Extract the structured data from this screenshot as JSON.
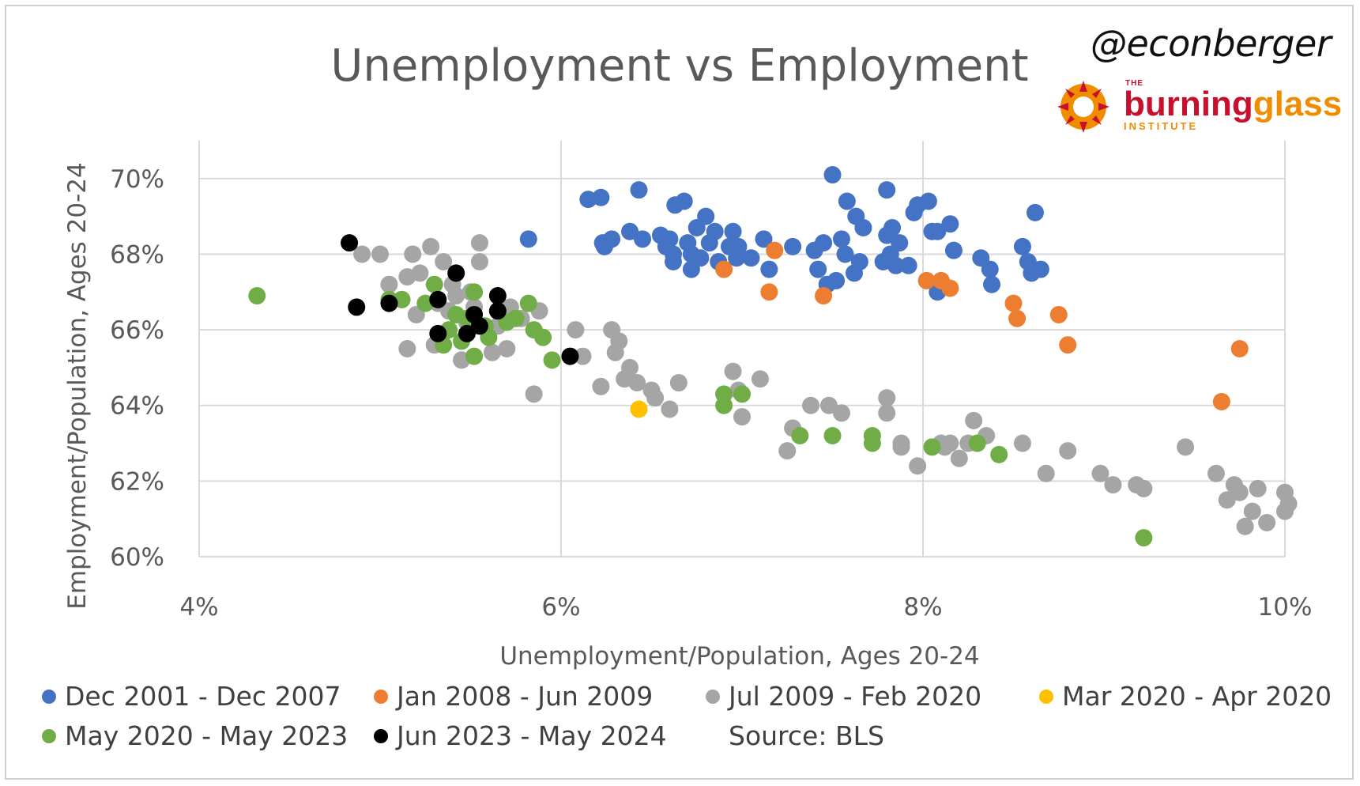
{
  "title": "Unemployment vs Employment",
  "handle": "@econberger",
  "logo": {
    "top": "THE",
    "word1": "burning",
    "word2": "glass",
    "bottom": "INSTITUTE"
  },
  "source": "Source: BLS",
  "chart_data": {
    "type": "scatter",
    "title": "Unemployment vs Employment",
    "xlabel": "Unemployment/Population, Ages 20-24",
    "ylabel": "Employment/Population, Ages 20-24",
    "xlim": [
      4,
      10
    ],
    "ylim": [
      60,
      71
    ],
    "xticks": [
      4,
      6,
      8,
      10
    ],
    "yticks": [
      60,
      62,
      64,
      66,
      68,
      70
    ],
    "x_tick_format": "%",
    "y_tick_format": "%",
    "grid": true,
    "legend_position": "bottom",
    "series": [
      {
        "name": "Dec 2001 - Dec 2007",
        "color": "#4472C4",
        "points": [
          [
            5.82,
            68.4
          ],
          [
            6.15,
            69.45
          ],
          [
            6.22,
            69.5
          ],
          [
            6.23,
            68.3
          ],
          [
            6.24,
            68.2
          ],
          [
            6.28,
            68.4
          ],
          [
            6.38,
            68.6
          ],
          [
            6.43,
            69.7
          ],
          [
            6.45,
            68.4
          ],
          [
            6.55,
            68.5
          ],
          [
            6.58,
            68.2
          ],
          [
            6.6,
            68.4
          ],
          [
            6.62,
            68.0
          ],
          [
            6.62,
            67.8
          ],
          [
            6.63,
            69.3
          ],
          [
            6.68,
            69.4
          ],
          [
            6.7,
            68.3
          ],
          [
            6.72,
            68.0
          ],
          [
            6.72,
            67.6
          ],
          [
            6.75,
            68.7
          ],
          [
            6.77,
            67.9
          ],
          [
            6.8,
            69.0
          ],
          [
            6.82,
            68.3
          ],
          [
            6.85,
            68.6
          ],
          [
            6.87,
            67.8
          ],
          [
            6.93,
            68.2
          ],
          [
            6.95,
            68.6
          ],
          [
            6.97,
            67.9
          ],
          [
            6.98,
            68.2
          ],
          [
            7.05,
            67.9
          ],
          [
            7.12,
            68.4
          ],
          [
            7.15,
            67.6
          ],
          [
            7.28,
            68.2
          ],
          [
            7.4,
            68.1
          ],
          [
            7.42,
            67.6
          ],
          [
            7.45,
            68.3
          ],
          [
            7.47,
            67.2
          ],
          [
            7.5,
            70.1
          ],
          [
            7.52,
            67.3
          ],
          [
            7.55,
            68.4
          ],
          [
            7.57,
            68.0
          ],
          [
            7.58,
            69.4
          ],
          [
            7.62,
            67.5
          ],
          [
            7.63,
            69.0
          ],
          [
            7.65,
            67.8
          ],
          [
            7.67,
            68.7
          ],
          [
            7.78,
            67.8
          ],
          [
            7.8,
            69.7
          ],
          [
            7.8,
            68.5
          ],
          [
            7.82,
            68.0
          ],
          [
            7.83,
            68.7
          ],
          [
            7.85,
            67.7
          ],
          [
            7.87,
            68.3
          ],
          [
            7.92,
            67.7
          ],
          [
            7.95,
            69.1
          ],
          [
            7.97,
            69.3
          ],
          [
            8.03,
            69.4
          ],
          [
            8.05,
            68.6
          ],
          [
            8.08,
            68.6
          ],
          [
            8.08,
            67.0
          ],
          [
            8.15,
            68.8
          ],
          [
            8.17,
            68.1
          ],
          [
            8.32,
            67.9
          ],
          [
            8.37,
            67.6
          ],
          [
            8.38,
            67.2
          ],
          [
            8.55,
            68.2
          ],
          [
            8.58,
            67.8
          ],
          [
            8.6,
            67.5
          ],
          [
            8.62,
            69.1
          ],
          [
            8.65,
            67.6
          ]
        ]
      },
      {
        "name": "Jan 2008 - Jun 2009",
        "color": "#ED7D31",
        "points": [
          [
            6.9,
            67.6
          ],
          [
            7.15,
            67.0
          ],
          [
            7.18,
            68.1
          ],
          [
            7.45,
            66.9
          ],
          [
            8.02,
            67.3
          ],
          [
            8.1,
            67.3
          ],
          [
            8.15,
            67.1
          ],
          [
            8.5,
            66.7
          ],
          [
            8.52,
            66.3
          ],
          [
            8.75,
            66.4
          ],
          [
            8.8,
            65.6
          ],
          [
            9.65,
            64.1
          ],
          [
            9.75,
            65.5
          ]
        ]
      },
      {
        "name": "Jul 2009 - Feb 2020",
        "color": "#A5A5A5",
        "points": [
          [
            4.9,
            68.0
          ],
          [
            5.0,
            68.0
          ],
          [
            5.05,
            67.2
          ],
          [
            5.12,
            66.8
          ],
          [
            5.15,
            67.4
          ],
          [
            5.15,
            65.5
          ],
          [
            5.18,
            68.0
          ],
          [
            5.2,
            66.4
          ],
          [
            5.22,
            67.5
          ],
          [
            5.28,
            68.2
          ],
          [
            5.3,
            65.6
          ],
          [
            5.32,
            66.7
          ],
          [
            5.35,
            67.8
          ],
          [
            5.38,
            66.5
          ],
          [
            5.4,
            67.2
          ],
          [
            5.42,
            66.9
          ],
          [
            5.45,
            65.2
          ],
          [
            5.48,
            66.2
          ],
          [
            5.5,
            67.0
          ],
          [
            5.52,
            66.6
          ],
          [
            5.55,
            68.3
          ],
          [
            5.55,
            67.8
          ],
          [
            5.6,
            66.0
          ],
          [
            5.62,
            65.4
          ],
          [
            5.65,
            66.1
          ],
          [
            5.7,
            65.5
          ],
          [
            5.72,
            66.6
          ],
          [
            5.78,
            66.3
          ],
          [
            5.85,
            64.3
          ],
          [
            5.88,
            66.5
          ],
          [
            6.08,
            66.0
          ],
          [
            6.12,
            65.3
          ],
          [
            6.22,
            64.5
          ],
          [
            6.28,
            66.0
          ],
          [
            6.3,
            65.4
          ],
          [
            6.32,
            65.7
          ],
          [
            6.35,
            64.7
          ],
          [
            6.38,
            65.0
          ],
          [
            6.42,
            64.6
          ],
          [
            6.5,
            64.4
          ],
          [
            6.52,
            64.2
          ],
          [
            6.6,
            63.9
          ],
          [
            6.65,
            64.6
          ],
          [
            6.95,
            64.9
          ],
          [
            6.98,
            64.4
          ],
          [
            7.0,
            63.7
          ],
          [
            7.1,
            64.7
          ],
          [
            7.25,
            62.8
          ],
          [
            7.28,
            63.4
          ],
          [
            7.38,
            64.0
          ],
          [
            7.48,
            64.0
          ],
          [
            7.55,
            63.8
          ],
          [
            7.8,
            64.2
          ],
          [
            7.8,
            63.8
          ],
          [
            7.88,
            63.0
          ],
          [
            7.88,
            62.9
          ],
          [
            7.97,
            62.4
          ],
          [
            8.1,
            63.0
          ],
          [
            8.12,
            62.9
          ],
          [
            8.15,
            63.0
          ],
          [
            8.2,
            62.6
          ],
          [
            8.25,
            63.0
          ],
          [
            8.28,
            63.6
          ],
          [
            8.35,
            63.2
          ],
          [
            8.55,
            63.0
          ],
          [
            8.68,
            62.2
          ],
          [
            8.8,
            62.8
          ],
          [
            8.98,
            62.2
          ],
          [
            9.05,
            61.9
          ],
          [
            9.18,
            61.9
          ],
          [
            9.22,
            61.8
          ],
          [
            9.45,
            62.9
          ],
          [
            9.62,
            62.2
          ],
          [
            9.68,
            61.5
          ],
          [
            9.72,
            61.9
          ],
          [
            9.75,
            61.7
          ],
          [
            9.78,
            60.8
          ],
          [
            9.82,
            61.2
          ],
          [
            9.85,
            61.8
          ],
          [
            9.9,
            60.9
          ],
          [
            10.0,
            61.7
          ],
          [
            10.02,
            61.4
          ],
          [
            10.0,
            61.2
          ]
        ]
      },
      {
        "name": "Mar 2020 - Apr 2020",
        "color": "#FFC000",
        "points": [
          [
            6.43,
            63.9
          ]
        ]
      },
      {
        "name": "May 2020 - May 2023",
        "color": "#70AD47",
        "points": [
          [
            4.32,
            66.9
          ],
          [
            5.05,
            66.8
          ],
          [
            5.12,
            66.8
          ],
          [
            5.25,
            66.7
          ],
          [
            5.3,
            67.2
          ],
          [
            5.35,
            65.6
          ],
          [
            5.38,
            66.0
          ],
          [
            5.42,
            66.4
          ],
          [
            5.45,
            65.7
          ],
          [
            5.48,
            66.3
          ],
          [
            5.52,
            65.3
          ],
          [
            5.52,
            67.0
          ],
          [
            5.58,
            66.1
          ],
          [
            5.6,
            65.8
          ],
          [
            5.7,
            66.2
          ],
          [
            5.75,
            66.3
          ],
          [
            5.82,
            66.7
          ],
          [
            5.85,
            66.0
          ],
          [
            5.9,
            65.8
          ],
          [
            5.95,
            65.2
          ],
          [
            6.9,
            64.3
          ],
          [
            6.9,
            64.0
          ],
          [
            7.0,
            64.3
          ],
          [
            7.32,
            63.2
          ],
          [
            7.5,
            63.2
          ],
          [
            7.72,
            63.2
          ],
          [
            7.72,
            63.0
          ],
          [
            8.05,
            62.9
          ],
          [
            8.3,
            63.0
          ],
          [
            8.42,
            62.7
          ],
          [
            9.22,
            60.5
          ]
        ]
      },
      {
        "name": "Jun 2023 - May 2024",
        "color": "#000000",
        "points": [
          [
            4.83,
            68.3
          ],
          [
            4.87,
            66.6
          ],
          [
            5.05,
            66.7
          ],
          [
            5.32,
            66.8
          ],
          [
            5.32,
            65.9
          ],
          [
            5.42,
            67.5
          ],
          [
            5.48,
            65.9
          ],
          [
            5.52,
            66.4
          ],
          [
            5.55,
            66.1
          ],
          [
            5.65,
            66.5
          ],
          [
            5.65,
            66.9
          ],
          [
            6.05,
            65.3
          ]
        ]
      }
    ]
  },
  "legend": [
    {
      "label": "Dec 2001 - Dec 2007",
      "color": "#4472C4"
    },
    {
      "label": "Jan 2008 - Jun 2009",
      "color": "#ED7D31"
    },
    {
      "label": "Jul 2009 - Feb 2020",
      "color": "#A5A5A5"
    },
    {
      "label": "Mar 2020 - Apr 2020",
      "color": "#FFC000"
    },
    {
      "label": "May 2020 - May 2023",
      "color": "#70AD47"
    },
    {
      "label": "Jun 2023 - May 2024",
      "color": "#000000"
    }
  ]
}
